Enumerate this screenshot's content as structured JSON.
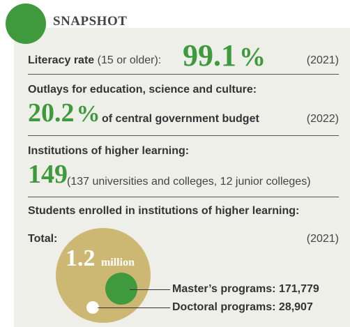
{
  "header": {
    "title": "SNAPSHOT"
  },
  "literacy": {
    "label": "Literacy rate",
    "qualifier": "(15 or older):",
    "value": "99.1",
    "unit": "%",
    "year": "(2021)"
  },
  "outlays": {
    "label": "Outlays for education, science and culture:",
    "value": "20.2",
    "unit": "%",
    "suffix": "of central government budget",
    "year": "(2022)"
  },
  "institutions": {
    "label": "Institutions of higher learning:",
    "value": "149",
    "detail": "(137 universities and colleges, 12 junior colleges)"
  },
  "students": {
    "label": "Students enrolled in institutions of higher learning:",
    "total_label": "Total:",
    "year": "(2021)",
    "total_value": "1.2",
    "total_unit": "million",
    "masters_label": "Master’s programs: 171,779",
    "doctoral_label": "Doctoral programs: 28,907"
  },
  "colors": {
    "accent": "#3f9a3d",
    "gold": "#cdb873",
    "panel": "#efefea"
  }
}
